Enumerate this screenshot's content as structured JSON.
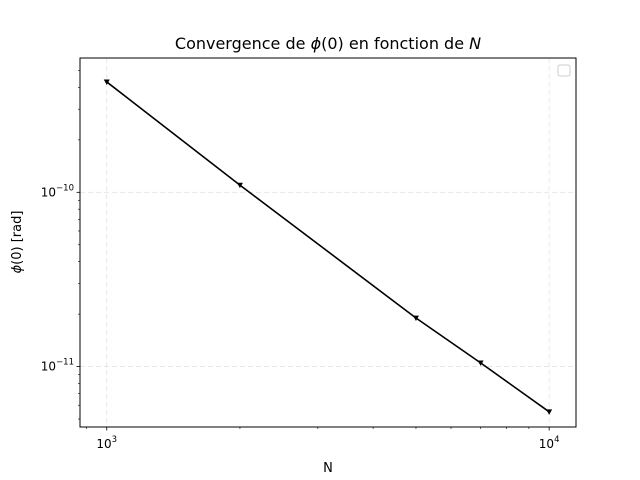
{
  "chart_data": {
    "type": "line",
    "title": {
      "prefix": "Convergence de ",
      "phi": "ϕ",
      "mid": "(0) en fonction de ",
      "var": "N"
    },
    "xlabel": "N",
    "ylabel": {
      "phi": "ϕ",
      "rest": "(0) [rad]"
    },
    "xscale": "log",
    "yscale": "log",
    "xlim": [
      870,
      11500
    ],
    "ylim": [
      4.5e-12,
      5.9e-10
    ],
    "xticks": [
      {
        "value": 1000,
        "base": "10",
        "exp": "3"
      },
      {
        "value": 10000,
        "base": "10",
        "exp": "4"
      }
    ],
    "yticks": [
      {
        "value": 1e-11,
        "base": "10",
        "exp": "−11"
      },
      {
        "value": 1e-10,
        "base": "10",
        "exp": "−10"
      }
    ],
    "grid": true,
    "legend": {
      "placement": "upper right",
      "entries": []
    },
    "marker": "triangle-down",
    "series": [
      {
        "color": "#000000",
        "x": [
          1000,
          2000,
          5000,
          7000,
          10000
        ],
        "y": [
          4.3e-10,
          1.1e-10,
          1.9e-11,
          1.05e-11,
          5.5e-12
        ]
      }
    ]
  }
}
